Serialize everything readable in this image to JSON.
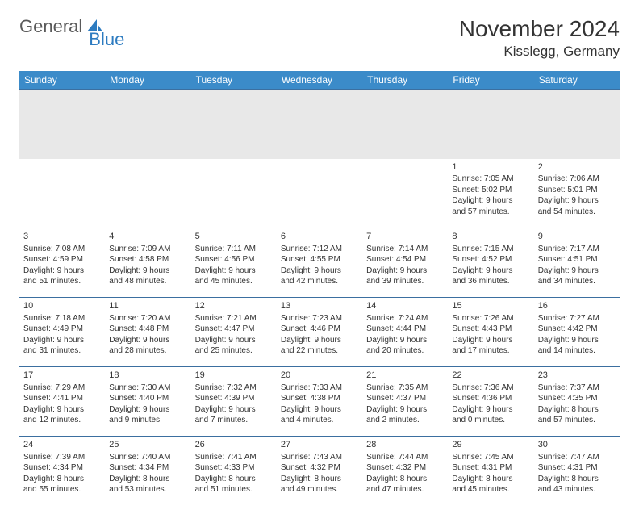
{
  "brand": {
    "part1": "General",
    "part2": "Blue",
    "color1": "#5a5a5a",
    "color2": "#2d7bc0"
  },
  "title": "November 2024",
  "location": "Kisslegg, Germany",
  "header_bg": "#3b8bc9",
  "header_fg": "#ffffff",
  "row_border": "#3b6fa0",
  "spacer_bg": "#e8e8e8",
  "day_headers": [
    "Sunday",
    "Monday",
    "Tuesday",
    "Wednesday",
    "Thursday",
    "Friday",
    "Saturday"
  ],
  "weeks": [
    [
      null,
      null,
      null,
      null,
      null,
      {
        "n": "1",
        "sr": "Sunrise: 7:05 AM",
        "ss": "Sunset: 5:02 PM",
        "d1": "Daylight: 9 hours",
        "d2": "and 57 minutes."
      },
      {
        "n": "2",
        "sr": "Sunrise: 7:06 AM",
        "ss": "Sunset: 5:01 PM",
        "d1": "Daylight: 9 hours",
        "d2": "and 54 minutes."
      }
    ],
    [
      {
        "n": "3",
        "sr": "Sunrise: 7:08 AM",
        "ss": "Sunset: 4:59 PM",
        "d1": "Daylight: 9 hours",
        "d2": "and 51 minutes."
      },
      {
        "n": "4",
        "sr": "Sunrise: 7:09 AM",
        "ss": "Sunset: 4:58 PM",
        "d1": "Daylight: 9 hours",
        "d2": "and 48 minutes."
      },
      {
        "n": "5",
        "sr": "Sunrise: 7:11 AM",
        "ss": "Sunset: 4:56 PM",
        "d1": "Daylight: 9 hours",
        "d2": "and 45 minutes."
      },
      {
        "n": "6",
        "sr": "Sunrise: 7:12 AM",
        "ss": "Sunset: 4:55 PM",
        "d1": "Daylight: 9 hours",
        "d2": "and 42 minutes."
      },
      {
        "n": "7",
        "sr": "Sunrise: 7:14 AM",
        "ss": "Sunset: 4:54 PM",
        "d1": "Daylight: 9 hours",
        "d2": "and 39 minutes."
      },
      {
        "n": "8",
        "sr": "Sunrise: 7:15 AM",
        "ss": "Sunset: 4:52 PM",
        "d1": "Daylight: 9 hours",
        "d2": "and 36 minutes."
      },
      {
        "n": "9",
        "sr": "Sunrise: 7:17 AM",
        "ss": "Sunset: 4:51 PM",
        "d1": "Daylight: 9 hours",
        "d2": "and 34 minutes."
      }
    ],
    [
      {
        "n": "10",
        "sr": "Sunrise: 7:18 AM",
        "ss": "Sunset: 4:49 PM",
        "d1": "Daylight: 9 hours",
        "d2": "and 31 minutes."
      },
      {
        "n": "11",
        "sr": "Sunrise: 7:20 AM",
        "ss": "Sunset: 4:48 PM",
        "d1": "Daylight: 9 hours",
        "d2": "and 28 minutes."
      },
      {
        "n": "12",
        "sr": "Sunrise: 7:21 AM",
        "ss": "Sunset: 4:47 PM",
        "d1": "Daylight: 9 hours",
        "d2": "and 25 minutes."
      },
      {
        "n": "13",
        "sr": "Sunrise: 7:23 AM",
        "ss": "Sunset: 4:46 PM",
        "d1": "Daylight: 9 hours",
        "d2": "and 22 minutes."
      },
      {
        "n": "14",
        "sr": "Sunrise: 7:24 AM",
        "ss": "Sunset: 4:44 PM",
        "d1": "Daylight: 9 hours",
        "d2": "and 20 minutes."
      },
      {
        "n": "15",
        "sr": "Sunrise: 7:26 AM",
        "ss": "Sunset: 4:43 PM",
        "d1": "Daylight: 9 hours",
        "d2": "and 17 minutes."
      },
      {
        "n": "16",
        "sr": "Sunrise: 7:27 AM",
        "ss": "Sunset: 4:42 PM",
        "d1": "Daylight: 9 hours",
        "d2": "and 14 minutes."
      }
    ],
    [
      {
        "n": "17",
        "sr": "Sunrise: 7:29 AM",
        "ss": "Sunset: 4:41 PM",
        "d1": "Daylight: 9 hours",
        "d2": "and 12 minutes."
      },
      {
        "n": "18",
        "sr": "Sunrise: 7:30 AM",
        "ss": "Sunset: 4:40 PM",
        "d1": "Daylight: 9 hours",
        "d2": "and 9 minutes."
      },
      {
        "n": "19",
        "sr": "Sunrise: 7:32 AM",
        "ss": "Sunset: 4:39 PM",
        "d1": "Daylight: 9 hours",
        "d2": "and 7 minutes."
      },
      {
        "n": "20",
        "sr": "Sunrise: 7:33 AM",
        "ss": "Sunset: 4:38 PM",
        "d1": "Daylight: 9 hours",
        "d2": "and 4 minutes."
      },
      {
        "n": "21",
        "sr": "Sunrise: 7:35 AM",
        "ss": "Sunset: 4:37 PM",
        "d1": "Daylight: 9 hours",
        "d2": "and 2 minutes."
      },
      {
        "n": "22",
        "sr": "Sunrise: 7:36 AM",
        "ss": "Sunset: 4:36 PM",
        "d1": "Daylight: 9 hours",
        "d2": "and 0 minutes."
      },
      {
        "n": "23",
        "sr": "Sunrise: 7:37 AM",
        "ss": "Sunset: 4:35 PM",
        "d1": "Daylight: 8 hours",
        "d2": "and 57 minutes."
      }
    ],
    [
      {
        "n": "24",
        "sr": "Sunrise: 7:39 AM",
        "ss": "Sunset: 4:34 PM",
        "d1": "Daylight: 8 hours",
        "d2": "and 55 minutes."
      },
      {
        "n": "25",
        "sr": "Sunrise: 7:40 AM",
        "ss": "Sunset: 4:34 PM",
        "d1": "Daylight: 8 hours",
        "d2": "and 53 minutes."
      },
      {
        "n": "26",
        "sr": "Sunrise: 7:41 AM",
        "ss": "Sunset: 4:33 PM",
        "d1": "Daylight: 8 hours",
        "d2": "and 51 minutes."
      },
      {
        "n": "27",
        "sr": "Sunrise: 7:43 AM",
        "ss": "Sunset: 4:32 PM",
        "d1": "Daylight: 8 hours",
        "d2": "and 49 minutes."
      },
      {
        "n": "28",
        "sr": "Sunrise: 7:44 AM",
        "ss": "Sunset: 4:32 PM",
        "d1": "Daylight: 8 hours",
        "d2": "and 47 minutes."
      },
      {
        "n": "29",
        "sr": "Sunrise: 7:45 AM",
        "ss": "Sunset: 4:31 PM",
        "d1": "Daylight: 8 hours",
        "d2": "and 45 minutes."
      },
      {
        "n": "30",
        "sr": "Sunrise: 7:47 AM",
        "ss": "Sunset: 4:31 PM",
        "d1": "Daylight: 8 hours",
        "d2": "and 43 minutes."
      }
    ]
  ]
}
